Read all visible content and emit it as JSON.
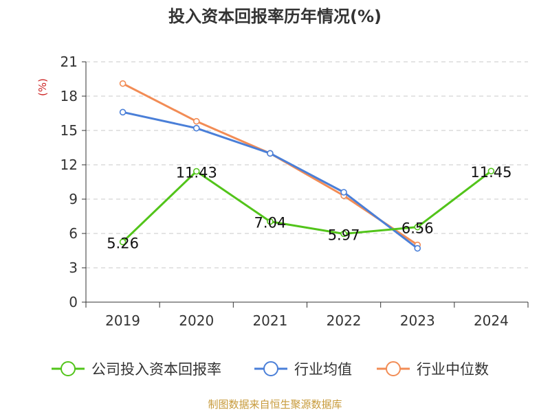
{
  "chart_data": {
    "type": "line",
    "title": "投入资本回报率历年情况(%)",
    "ylabel": "(%)",
    "categories": [
      "2019",
      "2020",
      "2021",
      "2022",
      "2023",
      "2024"
    ],
    "ylim": [
      0,
      21
    ],
    "yticks": [
      0,
      3,
      6,
      9,
      12,
      15,
      18,
      21
    ],
    "grid": true,
    "legend_position": "bottom",
    "series": [
      {
        "name": "公司投入资本回报率",
        "color": "#52c41a",
        "values": [
          5.26,
          11.43,
          7.04,
          5.97,
          6.56,
          11.45
        ],
        "labels": [
          "5.26",
          "11.43",
          "7.04",
          "5.97",
          "6.56",
          "11.45"
        ]
      },
      {
        "name": "行业均值",
        "color": "#4a7fd8",
        "values": [
          16.6,
          15.2,
          13.0,
          9.6,
          4.7,
          null
        ]
      },
      {
        "name": "行业中位数",
        "color": "#f28c55",
        "values": [
          19.1,
          15.8,
          13.0,
          9.3,
          5.0,
          null
        ]
      }
    ]
  },
  "footer": "制图数据来自恒生聚源数据库"
}
